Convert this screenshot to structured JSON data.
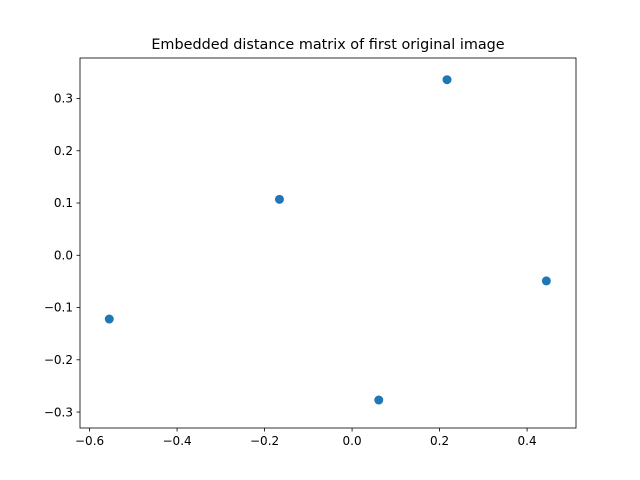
{
  "chart_data": {
    "type": "scatter",
    "title": "Embedded distance matrix of first original image",
    "xlabel": "",
    "ylabel": "",
    "xlim": [
      -0.6219,
      0.5118
    ],
    "ylim": [
      -0.3305,
      0.3775
    ],
    "xticks": [
      -0.6,
      -0.4,
      -0.2,
      0.0,
      0.2,
      0.4
    ],
    "xtick_labels": [
      "−0.6",
      "−0.4",
      "−0.2",
      "0.0",
      "0.2",
      "0.4"
    ],
    "yticks": [
      -0.3,
      -0.2,
      -0.1,
      0.0,
      0.1,
      0.2,
      0.3
    ],
    "ytick_labels": [
      "−0.3",
      "−0.2",
      "−0.1",
      "0.0",
      "0.1",
      "0.2",
      "0.3"
    ],
    "grid": false,
    "marker_color": "#1f77b4",
    "points": [
      {
        "x": -0.555,
        "y": -0.122
      },
      {
        "x": -0.166,
        "y": 0.107
      },
      {
        "x": 0.217,
        "y": 0.336
      },
      {
        "x": 0.444,
        "y": -0.049
      },
      {
        "x": 0.061,
        "y": -0.277
      }
    ]
  }
}
